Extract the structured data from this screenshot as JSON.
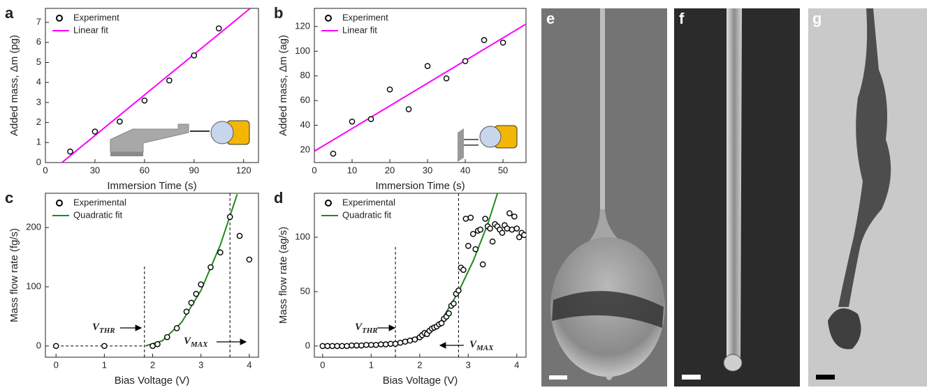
{
  "chart_data": [
    {
      "type": "scatter",
      "label": "a",
      "xlabel": "Immersion Time (s)",
      "ylabel": "Added mass, Δm (pg)",
      "xlim": [
        0,
        129
      ],
      "ylim": [
        0,
        7.7
      ],
      "xticks": [
        0,
        30,
        60,
        90,
        120
      ],
      "yticks": [
        0,
        1,
        2,
        3,
        4,
        5,
        6,
        7
      ],
      "series": [
        {
          "name": "Experiment",
          "kind": "scatter",
          "color": "#000000",
          "x": [
            15,
            30,
            45,
            60,
            75,
            90,
            105
          ],
          "values": [
            0.55,
            1.55,
            2.05,
            3.1,
            4.1,
            5.35,
            6.7
          ]
        },
        {
          "name": "Linear fit",
          "kind": "line",
          "color": "#ff00ff",
          "x": [
            10,
            124
          ],
          "values": [
            0,
            7.7
          ]
        }
      ]
    },
    {
      "type": "scatter",
      "label": "b",
      "xlabel": "Immersion Time (s)",
      "ylabel": "Added mass, Δm (ag)",
      "xlim": [
        0,
        56.1
      ],
      "ylim": [
        9.8,
        134.7
      ],
      "xticks": [
        0,
        10,
        20,
        30,
        40,
        50
      ],
      "yticks": [
        20,
        40,
        60,
        80,
        100,
        120
      ],
      "series": [
        {
          "name": "Experiment",
          "kind": "scatter",
          "color": "#000000",
          "x": [
            5,
            10,
            15,
            20,
            25,
            30,
            35,
            40,
            45,
            50
          ],
          "values": [
            17,
            43,
            45,
            69,
            53,
            88,
            78,
            92,
            109,
            107
          ]
        },
        {
          "name": "Linear fit",
          "kind": "line",
          "color": "#ff00ff",
          "x": [
            0,
            56.1
          ],
          "values": [
            19,
            122
          ]
        }
      ]
    },
    {
      "type": "scatter",
      "label": "c",
      "xlabel": "Bias Voltage (V)",
      "ylabel": "Mass flow rate (fg/s)",
      "xlim": [
        -0.22,
        4.19
      ],
      "ylim": [
        -19,
        258
      ],
      "xticks": [
        0,
        1,
        2,
        3,
        4
      ],
      "yticks": [
        0,
        100,
        200
      ],
      "series": [
        {
          "name": "Experimental",
          "kind": "scatter",
          "color": "#000000",
          "x": [
            0,
            1,
            2,
            2.1,
            2.3,
            2.5,
            2.7,
            2.8,
            2.9,
            3,
            3.2,
            3.4,
            3.6,
            3.8,
            4
          ],
          "values": [
            0,
            0,
            0,
            3,
            15,
            30,
            58,
            73,
            88,
            104,
            133,
            158,
            218,
            186,
            146
          ]
        },
        {
          "name": "Quadratic fit",
          "kind": "line",
          "color": "#1e8a1e",
          "x": [
            1.85,
            2.2,
            2.6,
            3,
            3.4,
            3.75
          ],
          "values": [
            0,
            8.7,
            39.9,
            93.9,
            170.6,
            256.3
          ]
        }
      ],
      "vlines": [
        {
          "x": 1.83,
          "top": 136
        },
        {
          "x": 3.6
        }
      ],
      "hlines": [
        {
          "y": 0,
          "x0": 0,
          "x1": 1.83
        }
      ],
      "annotations": [
        {
          "text": "V",
          "sub": "THR"
        },
        {
          "text": "V",
          "sub": "MAX"
        }
      ]
    },
    {
      "type": "scatter",
      "label": "d",
      "xlabel": "Bias Voltage (V)",
      "ylabel": "Mass flow rate (ag/s)",
      "xlim": [
        -0.17,
        4.19
      ],
      "ylim": [
        -10.3,
        140.4
      ],
      "xticks": [
        0,
        1,
        2,
        3,
        4
      ],
      "yticks": [
        0,
        50,
        100
      ],
      "series": [
        {
          "name": "Experimental",
          "kind": "scatter",
          "color": "#000000",
          "x": [
            0,
            0.1,
            0.2,
            0.3,
            0.4,
            0.5,
            0.6,
            0.7,
            0.8,
            0.9,
            1.0,
            1.1,
            1.2,
            1.3,
            1.4,
            1.5,
            1.6,
            1.7,
            1.8,
            1.9,
            2.0,
            2.05,
            2.1,
            2.15,
            2.2,
            2.25,
            2.3,
            2.35,
            2.4,
            2.45,
            2.5,
            2.55,
            2.6,
            2.65,
            2.7,
            2.75,
            2.8,
            2.85,
            2.9,
            2.95,
            3.0,
            3.05,
            3.1,
            3.15,
            3.2,
            3.25,
            3.3,
            3.35,
            3.4,
            3.45,
            3.5,
            3.55,
            3.6,
            3.65,
            3.7,
            3.75,
            3.8,
            3.85,
            3.9,
            3.95,
            4.0,
            4.05,
            4.1,
            4.15
          ],
          "values": [
            0,
            0,
            0,
            0,
            0,
            0,
            0.5,
            0.5,
            0.5,
            1,
            1,
            1,
            1.5,
            1.5,
            2,
            2,
            3,
            4,
            5,
            6,
            8,
            10,
            12,
            11,
            14,
            16,
            17,
            18,
            20,
            21,
            25,
            27,
            30,
            37,
            39,
            48,
            51,
            72,
            70,
            117,
            92,
            118,
            103,
            89,
            106,
            107,
            75,
            117,
            110,
            108,
            96,
            112,
            110,
            107,
            104,
            111,
            108,
            122,
            107,
            119,
            108,
            100,
            104,
            102
          ]
        },
        {
          "name": "Quadratic fit",
          "kind": "line",
          "color": "#1e8a1e",
          "x": [
            1.5,
            2,
            2.4,
            2.8,
            3.1,
            3.4,
            3.6
          ],
          "values": [
            3,
            9,
            20,
            50,
            78,
            112,
            140
          ]
        }
      ],
      "vlines": [
        {
          "x": 1.5,
          "top": 92
        },
        {
          "x": 2.8
        }
      ],
      "annotations": [
        {
          "text": "V",
          "sub": "THR"
        },
        {
          "text": "V",
          "sub": "MAX"
        }
      ]
    }
  ],
  "panels": [
    "e",
    "f",
    "g"
  ]
}
